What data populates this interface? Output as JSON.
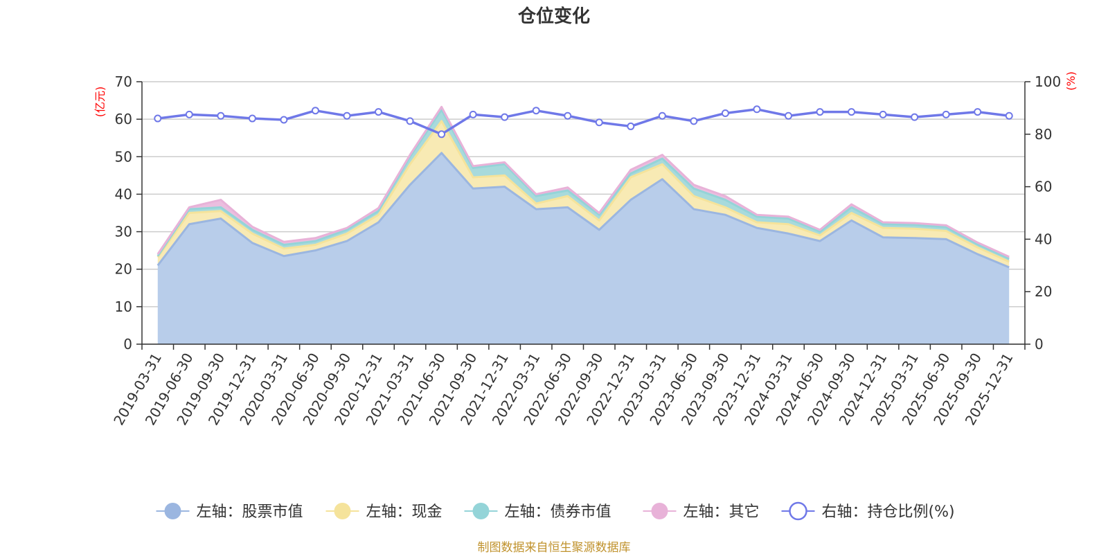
{
  "chart_data": {
    "type": "area",
    "title": "仓位变化",
    "source_note": "制图数据来自恒生聚源数据库",
    "left_axis": {
      "unit": "(亿元)",
      "ylim": [
        0,
        70
      ],
      "ticks": [
        0,
        10,
        20,
        30,
        40,
        50,
        60,
        70
      ]
    },
    "right_axis": {
      "unit": "(%)",
      "ylim": [
        0,
        100
      ],
      "ticks": [
        0,
        20,
        40,
        60,
        80,
        100
      ]
    },
    "grid": true,
    "legend_position": "bottom",
    "categories": [
      "2019-03-31",
      "2019-06-30",
      "2019-09-30",
      "2019-12-31",
      "2020-03-31",
      "2020-06-30",
      "2020-09-30",
      "2020-12-31",
      "2021-03-31",
      "2021-06-30",
      "2021-09-30",
      "2021-12-31",
      "2022-03-31",
      "2022-06-30",
      "2022-09-30",
      "2022-12-31",
      "2023-03-31",
      "2023-06-30",
      "2023-09-30",
      "2023-12-31",
      "2024-03-31",
      "2024-06-30",
      "2024-09-30",
      "2024-12-31",
      "2025-03-31",
      "2025-06-30",
      "2025-09-30",
      "2025-12-31"
    ],
    "series": [
      {
        "name": "左轴：股票市值",
        "axis": "left",
        "stack": true,
        "color": "#9bb6e0",
        "fill": "#b8cdea",
        "values": [
          21.0,
          32.0,
          33.5,
          27.0,
          23.5,
          25.0,
          27.5,
          32.5,
          42.5,
          51.0,
          41.5,
          42.0,
          36.0,
          36.5,
          30.5,
          38.5,
          44.0,
          36.0,
          34.5,
          31.0,
          29.5,
          27.5,
          33.0,
          28.5,
          28.3,
          28.0,
          24.0,
          20.5
        ]
      },
      {
        "name": "左轴：现金",
        "axis": "left",
        "stack": true,
        "color": "#f5e39b",
        "fill": "#f8eab4",
        "values": [
          2.2,
          3.0,
          2.0,
          2.5,
          2.0,
          1.5,
          2.0,
          2.0,
          5.5,
          8.5,
          3.0,
          3.0,
          1.5,
          3.0,
          2.5,
          6.0,
          4.0,
          3.5,
          2.0,
          1.5,
          2.5,
          1.5,
          2.0,
          2.5,
          2.5,
          2.2,
          1.8,
          1.5
        ]
      },
      {
        "name": "左轴：债券市值",
        "axis": "left",
        "stack": true,
        "color": "#94d4d8",
        "fill": "#a8dadc",
        "values": [
          0.3,
          1.0,
          1.0,
          1.0,
          1.0,
          1.0,
          1.0,
          1.0,
          2.0,
          3.0,
          2.5,
          3.0,
          2.0,
          1.5,
          1.5,
          1.0,
          1.5,
          2.0,
          2.0,
          1.5,
          1.5,
          1.0,
          1.5,
          1.0,
          1.0,
          1.0,
          0.8,
          0.8
        ]
      },
      {
        "name": "左轴：其它",
        "axis": "left",
        "stack": true,
        "color": "#e8b2d8",
        "fill": "#ebbedf",
        "values": [
          0.5,
          0.5,
          2.0,
          0.8,
          0.8,
          0.8,
          0.5,
          0.8,
          0.5,
          0.8,
          0.5,
          0.5,
          0.5,
          0.8,
          0.5,
          1.0,
          1.0,
          1.0,
          1.0,
          0.5,
          0.5,
          0.5,
          0.8,
          0.5,
          0.5,
          0.5,
          0.5,
          0.5
        ]
      },
      {
        "name": "右轴：持仓比例(%)",
        "axis": "right",
        "type": "line",
        "color": "#6f78e8",
        "values": [
          86.0,
          87.5,
          87.0,
          86.0,
          85.5,
          89.0,
          87.0,
          88.5,
          85.0,
          80.0,
          87.5,
          86.5,
          89.0,
          87.0,
          84.5,
          83.0,
          87.0,
          85.0,
          88.0,
          89.5,
          87.0,
          88.5,
          88.5,
          87.5,
          86.5,
          87.5,
          88.5,
          87.0
        ]
      }
    ]
  }
}
